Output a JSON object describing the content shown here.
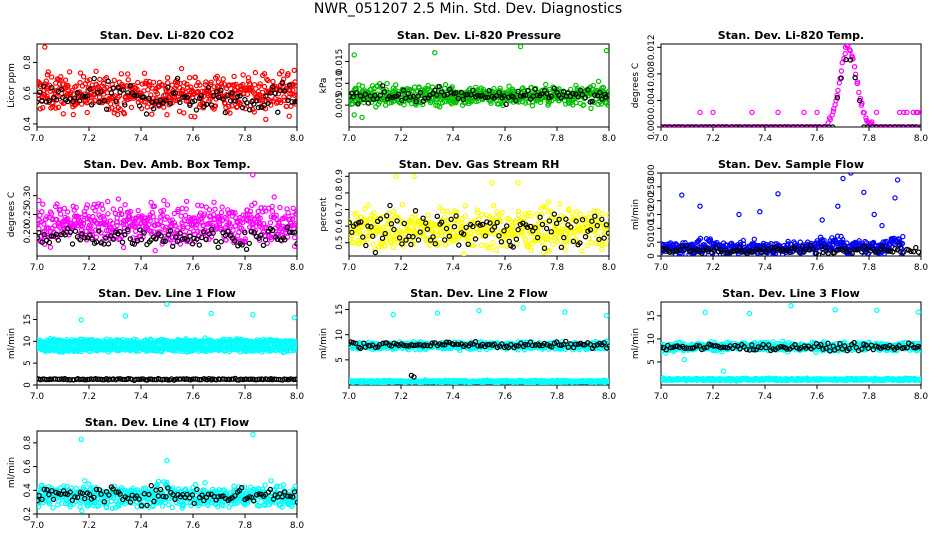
{
  "page": {
    "title": "NWR_051207  2.5 Min. Std. Dev. Diagnostics"
  },
  "chart_data": [
    {
      "type": "scatter",
      "title": "Stan. Dev. Li-820 CO2",
      "xlabel": "",
      "ylabel": "Licor ppm",
      "xlim": [
        7.0,
        8.0
      ],
      "ylim": [
        0.38,
        0.92
      ],
      "xticks": [
        "7.0",
        "7.2",
        "7.4",
        "7.6",
        "7.8",
        "8.0"
      ],
      "yticks": [
        "0.4",
        "0.6",
        "0.8"
      ],
      "ytick_values": [
        0.4,
        0.6,
        0.8
      ],
      "series": [
        {
          "name": "colored",
          "color": "#ff0000",
          "x_range": [
            7.0,
            8.0
          ],
          "n": 520,
          "center": 0.6,
          "spread": 0.06,
          "outliers": [
            [
              7.03,
              0.9
            ],
            [
              7.04,
              0.72
            ],
            [
              7.5,
              0.46
            ],
            [
              7.88,
              0.43
            ],
            [
              7.97,
              0.45
            ]
          ]
        },
        {
          "name": "black",
          "color": "#000000",
          "x_range": [
            7.0,
            8.0
          ],
          "n": 110,
          "center": 0.57,
          "spread": 0.05
        }
      ]
    },
    {
      "type": "scatter",
      "title": "Stan. Dev. Li-820 Pressure",
      "xlabel": "",
      "ylabel": "kPa",
      "xlim": [
        7.0,
        8.0
      ],
      "ylim": [
        0.0,
        0.019
      ],
      "xticks": [
        "7.0",
        "7.2",
        "7.4",
        "7.6",
        "7.8",
        "8.0"
      ],
      "yticks": [
        "0.005",
        "0.010",
        "0.015"
      ],
      "ytick_values": [
        0.005,
        0.01,
        0.015
      ],
      "series": [
        {
          "name": "colored",
          "color": "#00c000",
          "x_range": [
            7.0,
            8.0
          ],
          "n": 560,
          "center": 0.0072,
          "spread": 0.0011,
          "outliers": [
            [
              7.02,
              0.0165
            ],
            [
              7.33,
              0.017
            ],
            [
              7.66,
              0.0184
            ],
            [
              7.99,
              0.0175
            ],
            [
              7.02,
              0.0028
            ],
            [
              7.05,
              0.0022
            ]
          ]
        },
        {
          "name": "black",
          "color": "#000000",
          "x_range": [
            7.0,
            8.0
          ],
          "n": 110,
          "center": 0.0072,
          "spread": 0.0008
        }
      ]
    },
    {
      "type": "scatter",
      "title": "Stan. Dev. Li-820 Temp.",
      "xlabel": "",
      "ylabel": "degrees C",
      "xlim": [
        7.0,
        8.0
      ],
      "ylim": [
        0.0,
        0.0125
      ],
      "xticks": [
        "7.0",
        "7.2",
        "7.4",
        "7.6",
        "7.8",
        "8.0"
      ],
      "yticks": [
        "0.000",
        "0.004",
        "0.008",
        "0.012"
      ],
      "ytick_values": [
        0.0,
        0.004,
        0.008,
        0.012
      ],
      "series": [
        {
          "name": "colored",
          "color": "#ff00ff",
          "x_range": [
            7.0,
            8.0
          ],
          "n": 240,
          "center": 0.0,
          "spread": 0.0,
          "outliers": [
            [
              7.15,
              0.0022
            ],
            [
              7.2,
              0.0022
            ],
            [
              7.35,
              0.0022
            ],
            [
              7.45,
              0.0022
            ],
            [
              7.55,
              0.0022
            ],
            [
              7.6,
              0.0022
            ]
          ]
        },
        {
          "name": "black",
          "color": "#000000",
          "x_range": [
            7.0,
            8.0
          ],
          "n": 60,
          "center": 0.0,
          "spread": 0.0
        }
      ]
    },
    {
      "type": "scatter",
      "title": "Stan. Dev. Amb. Box Temp.",
      "xlabel": "",
      "ylabel": "degrees C",
      "xlim": [
        7.0,
        8.0
      ],
      "ylim": [
        0.14,
        0.36
      ],
      "xticks": [
        "7.0",
        "7.2",
        "7.4",
        "7.6",
        "7.8",
        "8.0"
      ],
      "yticks": [
        "0.20",
        "0.25",
        "0.30"
      ],
      "ytick_values": [
        0.2,
        0.25,
        0.3
      ],
      "series": [
        {
          "name": "colored",
          "color": "#ff00ff",
          "x_range": [
            7.0,
            8.0
          ],
          "n": 540,
          "center": 0.225,
          "spread": 0.026,
          "outliers": [
            [
              7.83,
              0.355
            ]
          ]
        },
        {
          "name": "black",
          "color": "#000000",
          "x_range": [
            7.0,
            8.0
          ],
          "n": 110,
          "center": 0.19,
          "spread": 0.012
        }
      ]
    },
    {
      "type": "scatter",
      "title": "Stan. Dev. Gas Stream RH",
      "xlabel": "",
      "ylabel": "percent",
      "xlim": [
        7.0,
        8.0
      ],
      "ylim": [
        0.42,
        0.92
      ],
      "xticks": [
        "7.0",
        "7.2",
        "7.4",
        "7.6",
        "7.8",
        "8.0"
      ],
      "yticks": [
        "0.5",
        "0.6",
        "0.7",
        "0.8",
        "0.9"
      ],
      "ytick_values": [
        0.5,
        0.6,
        0.7,
        0.8,
        0.9
      ],
      "series": [
        {
          "name": "colored",
          "color": "#ffff00",
          "x_range": [
            7.0,
            8.0
          ],
          "n": 520,
          "center": 0.58,
          "spread": 0.06,
          "outliers": [
            [
              7.18,
              0.9
            ],
            [
              7.25,
              0.9
            ],
            [
              7.55,
              0.86
            ],
            [
              7.65,
              0.86
            ]
          ]
        },
        {
          "name": "black",
          "color": "#000000",
          "x_range": [
            7.0,
            8.0
          ],
          "n": 110,
          "center": 0.58,
          "spread": 0.05
        }
      ]
    },
    {
      "type": "scatter",
      "title": "Stan. Dev. Sample Flow",
      "xlabel": "",
      "ylabel": "ml/min",
      "xlim": [
        7.0,
        8.0
      ],
      "ylim": [
        0,
        300
      ],
      "xticks": [
        "7.0",
        "7.2",
        "7.4",
        "7.6",
        "7.8",
        "8.0"
      ],
      "yticks": [
        "0",
        "50",
        "100",
        "150",
        "200",
        "250",
        "300"
      ],
      "ytick_values": [
        0,
        50,
        100,
        150,
        200,
        250,
        300
      ],
      "series": [
        {
          "name": "colored",
          "color": "#0000ff",
          "x_range": [
            7.0,
            7.93
          ],
          "n": 480,
          "center": 30,
          "spread": 12,
          "outliers": [
            [
              7.08,
              220
            ],
            [
              7.15,
              180
            ],
            [
              7.3,
              150
            ],
            [
              7.38,
              160
            ],
            [
              7.45,
              225
            ],
            [
              7.62,
              130
            ],
            [
              7.68,
              180
            ],
            [
              7.7,
              280
            ],
            [
              7.73,
              300
            ],
            [
              7.78,
              230
            ],
            [
              7.82,
              150
            ],
            [
              7.85,
              110
            ],
            [
              7.9,
              210
            ],
            [
              7.91,
              275
            ],
            [
              7.93,
              70
            ]
          ]
        },
        {
          "name": "black",
          "color": "#000000",
          "x_range": [
            7.0,
            8.0
          ],
          "n": 110,
          "center": 22,
          "spread": 8
        }
      ]
    },
    {
      "type": "scatter",
      "title": "Stan. Dev. Line 1 Flow",
      "xlabel": "",
      "ylabel": "ml/min",
      "xlim": [
        7.0,
        8.0
      ],
      "ylim": [
        0,
        19
      ],
      "xticks": [
        "7.0",
        "7.2",
        "7.4",
        "7.6",
        "7.8",
        "8.0"
      ],
      "yticks": [
        "0",
        "5",
        "10",
        "15"
      ],
      "ytick_values": [
        0,
        5,
        10,
        15
      ],
      "series": [
        {
          "name": "colored-upper",
          "color": "#00ffff",
          "x_range": [
            7.0,
            8.0
          ],
          "n": 440,
          "center": 9.8,
          "spread": 0.35,
          "outliers": [
            [
              7.17,
              14.9
            ],
            [
              7.34,
              15.8
            ],
            [
              7.5,
              18.5
            ],
            [
              7.67,
              16.4
            ],
            [
              7.83,
              16.1
            ],
            [
              7.99,
              15.4
            ]
          ]
        },
        {
          "name": "colored-lower",
          "color": "#00ffff",
          "x_range": [
            7.0,
            8.0
          ],
          "n": 420,
          "center": 8.3,
          "spread": 0.35
        },
        {
          "name": "black",
          "color": "#000000",
          "x_range": [
            7.0,
            8.0
          ],
          "n": 140,
          "center": 1.3,
          "spread": 0.08
        }
      ]
    },
    {
      "type": "scatter",
      "title": "Stan. Dev. Line 2 Flow",
      "xlabel": "",
      "ylabel": "ml/min",
      "xlim": [
        7.0,
        8.0
      ],
      "ylim": [
        0,
        16.5
      ],
      "xticks": [
        "7.0",
        "7.2",
        "7.4",
        "7.6",
        "7.8",
        "8.0"
      ],
      "yticks": [
        "5",
        "10",
        "15"
      ],
      "ytick_values": [
        5,
        10,
        15
      ],
      "series": [
        {
          "name": "colored-upper",
          "color": "#00ffff",
          "x_range": [
            7.0,
            8.0
          ],
          "n": 600,
          "center": 7.8,
          "spread": 0.35,
          "outliers": [
            [
              7.17,
              14.0
            ],
            [
              7.34,
              14.3
            ],
            [
              7.5,
              14.8
            ],
            [
              7.67,
              15.3
            ],
            [
              7.83,
              14.5
            ],
            [
              7.99,
              13.8
            ]
          ]
        },
        {
          "name": "colored-lower",
          "color": "#00ffff",
          "x_range": [
            7.0,
            8.0
          ],
          "n": 480,
          "center": 0.7,
          "spread": 0.12
        },
        {
          "name": "black",
          "color": "#000000",
          "x_range": [
            7.0,
            8.0
          ],
          "n": 110,
          "center": 8.0,
          "spread": 0.3,
          "outliers": [
            [
              7.24,
              1.9
            ],
            [
              7.25,
              1.6
            ]
          ]
        }
      ]
    },
    {
      "type": "scatter",
      "title": "Stan. Dev. Line 3 Flow",
      "xlabel": "",
      "ylabel": "ml/min",
      "xlim": [
        7.0,
        8.0
      ],
      "ylim": [
        0,
        18
      ],
      "xticks": [
        "7.0",
        "7.2",
        "7.4",
        "7.6",
        "7.8",
        "8.0"
      ],
      "yticks": [
        "5",
        "10",
        "15"
      ],
      "ytick_values": [
        5,
        10,
        15
      ],
      "series": [
        {
          "name": "colored-upper",
          "color": "#00ffff",
          "x_range": [
            7.0,
            8.0
          ],
          "n": 600,
          "center": 8.3,
          "spread": 0.45,
          "outliers": [
            [
              7.17,
              15.7
            ],
            [
              7.34,
              15.5
            ],
            [
              7.5,
              17.2
            ],
            [
              7.67,
              16.3
            ],
            [
              7.83,
              16.2
            ],
            [
              7.99,
              15.8
            ],
            [
              7.09,
              5.5
            ],
            [
              7.24,
              3.0
            ]
          ]
        },
        {
          "name": "colored-lower",
          "color": "#00ffff",
          "x_range": [
            7.0,
            8.0
          ],
          "n": 480,
          "center": 1.2,
          "spread": 0.12
        },
        {
          "name": "black",
          "color": "#000000",
          "x_range": [
            7.0,
            8.0
          ],
          "n": 110,
          "center": 8.2,
          "spread": 0.35
        }
      ]
    },
    {
      "type": "scatter",
      "title": "Stan. Dev. Line 4 (LT) Flow",
      "xlabel": "",
      "ylabel": "ml/min",
      "xlim": [
        7.0,
        8.0
      ],
      "ylim": [
        0.2,
        0.9
      ],
      "xticks": [
        "7.0",
        "7.2",
        "7.4",
        "7.6",
        "7.8",
        "8.0"
      ],
      "yticks": [
        "0.2",
        "0.4",
        "0.6",
        "0.8"
      ],
      "ytick_values": [
        0.2,
        0.4,
        0.6,
        0.8
      ],
      "series": [
        {
          "name": "colored",
          "color": "#00ffff",
          "x_range": [
            7.0,
            8.0
          ],
          "n": 600,
          "center": 0.35,
          "spread": 0.045,
          "outliers": [
            [
              7.17,
              0.83
            ],
            [
              7.5,
              0.65
            ],
            [
              7.83,
              0.87
            ],
            [
              7.9,
              0.48
            ]
          ]
        },
        {
          "name": "black",
          "color": "#000000",
          "x_range": [
            7.0,
            8.0
          ],
          "n": 110,
          "center": 0.36,
          "spread": 0.035
        }
      ]
    }
  ]
}
